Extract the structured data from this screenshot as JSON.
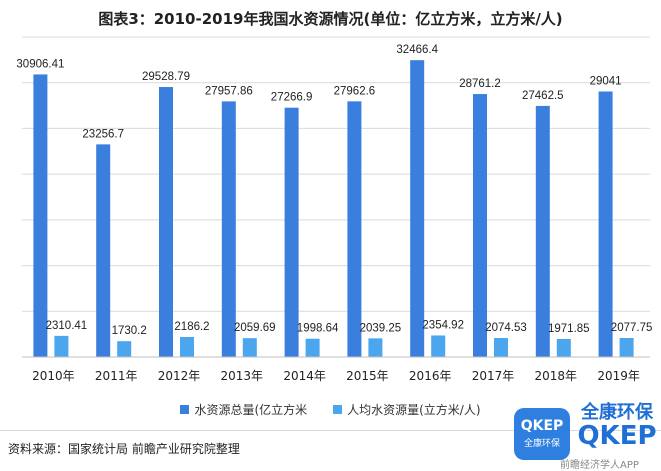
{
  "title": "图表3：2010-2019年我国水资源情况(单位：亿立方米，立方米/人)",
  "source": "资料来源：国家统计局 前瞻产业研究院整理",
  "logo": {
    "badge_line1": "QKEP",
    "badge_line2": "全康环保",
    "text_line1": "全康环保",
    "text_line2": "QKEP",
    "caption": "前瞻经济学人APP"
  },
  "colors": {
    "total": "#3a7fde",
    "per_capita": "#4ba6ee",
    "grid": "#d9d9d9",
    "text": "#222222"
  },
  "chart_data": {
    "type": "bar",
    "categories": [
      "2010年",
      "2011年",
      "2012年",
      "2013年",
      "2014年",
      "2015年",
      "2016年",
      "2017年",
      "2018年",
      "2019年"
    ],
    "series": [
      {
        "name": "水资源总量(亿立方米",
        "values": [
          30906.41,
          23256.7,
          29528.79,
          27957.86,
          27266.9,
          27962.6,
          32466.4,
          28761.2,
          27462.5,
          29041
        ]
      },
      {
        "name": "人均水资源量(立方米/人)",
        "values": [
          2310.41,
          1730.2,
          2186.2,
          2059.69,
          1998.64,
          2039.25,
          2354.92,
          2074.53,
          1971.85,
          2077.75
        ]
      }
    ],
    "labels_total": [
      "30906.41",
      "23256.7",
      "29528.79",
      "27957.86",
      "27266.9",
      "27962.6",
      "32466.4",
      "28761.2",
      "27462.5",
      "29041"
    ],
    "labels_per_capita": [
      "2310.41",
      "1730.2",
      "2186.2",
      "2059.69",
      "1998.64",
      "2039.25",
      "2354.92",
      "2074.53",
      "1971.85",
      "2077.75"
    ],
    "ylim": [
      0,
      35000
    ],
    "grid": true,
    "legend": "bottom"
  }
}
